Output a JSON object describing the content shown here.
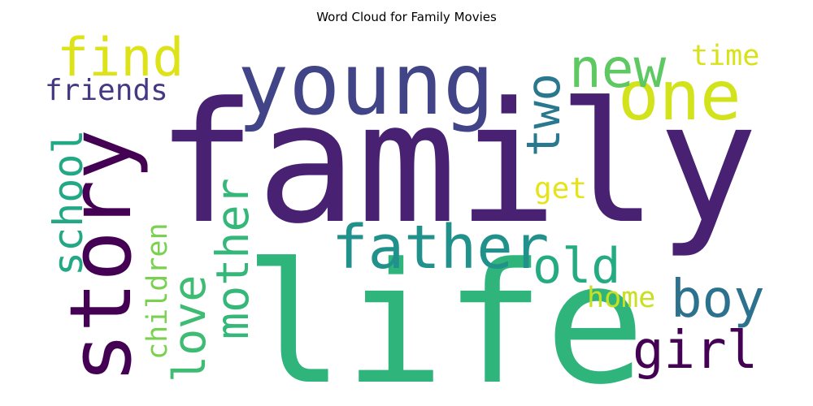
{
  "title": "Word Cloud for Family Movies",
  "colors": {
    "background": "#ffffff"
  },
  "words": [
    {
      "text": "family",
      "color": "#482173"
    },
    {
      "text": "life",
      "color": "#2fb47c"
    },
    {
      "text": "young",
      "color": "#414487"
    },
    {
      "text": "one",
      "color": "#d2e21b"
    },
    {
      "text": "story",
      "color": "#440154"
    },
    {
      "text": "new",
      "color": "#5ec962"
    },
    {
      "text": "find",
      "color": "#dde318"
    },
    {
      "text": "father",
      "color": "#21918c"
    },
    {
      "text": "two",
      "color": "#2a788e"
    },
    {
      "text": "mother",
      "color": "#35b779"
    },
    {
      "text": "school",
      "color": "#22a884"
    },
    {
      "text": "boy",
      "color": "#2c728e"
    },
    {
      "text": "girl",
      "color": "#440154"
    },
    {
      "text": "love",
      "color": "#3fbc73"
    },
    {
      "text": "old",
      "color": "#25ab82"
    },
    {
      "text": "friends",
      "color": "#443983"
    },
    {
      "text": "children",
      "color": "#7ad151"
    },
    {
      "text": "time",
      "color": "#d8e219"
    },
    {
      "text": "home",
      "color": "#c8e020"
    },
    {
      "text": "get",
      "color": "#e5e419"
    }
  ]
}
